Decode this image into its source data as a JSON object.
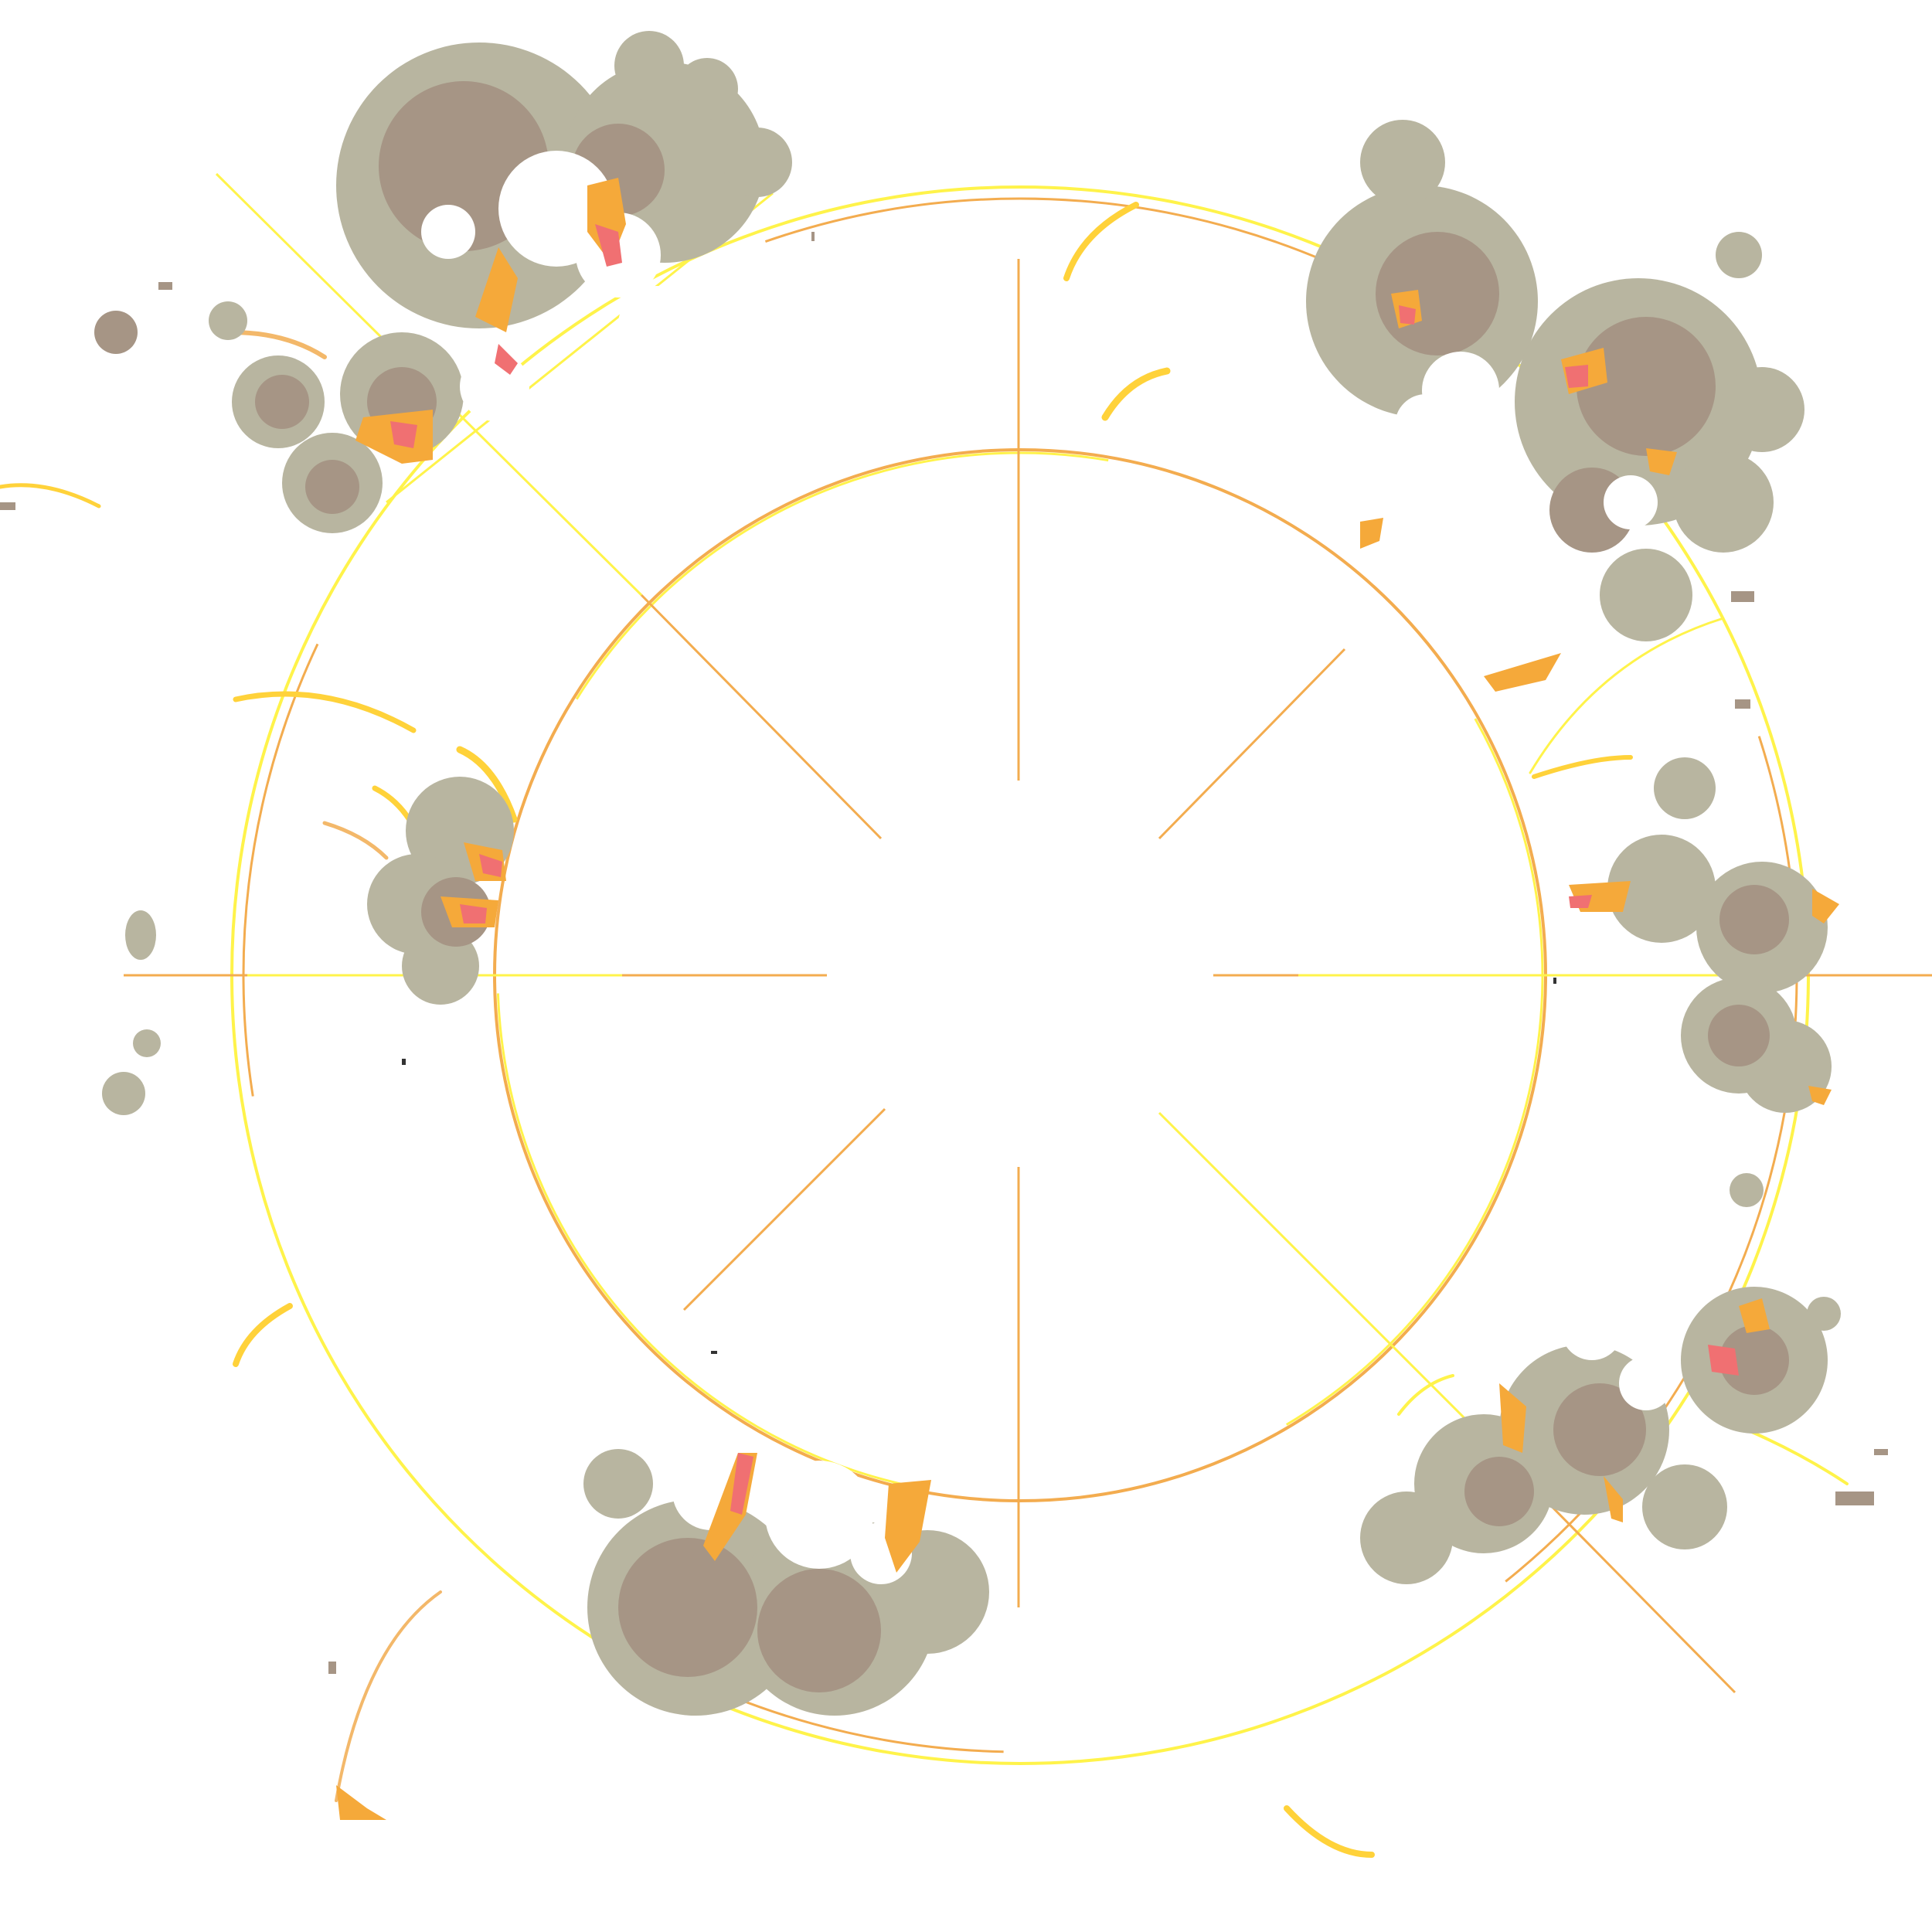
{
  "sprite": {
    "kind": "explosion-effect-sheet",
    "palette": {
      "background": "#ffffff",
      "smoke_light": "#b8b5a0",
      "smoke_dark": "#a69585",
      "fire_orange": "#f5a93a",
      "fire_pink": "#f07072",
      "ring_yellow": "#fff34a",
      "ring_orange": "#f3ac4f",
      "spark_yellow": "#ffd23a",
      "spark_orange": "#f3b86a"
    },
    "icons": {
      "shockwave": "shockwave-ring-icon",
      "smoke": "smoke-cloud-icon",
      "spark": "spark-streak-icon"
    }
  }
}
